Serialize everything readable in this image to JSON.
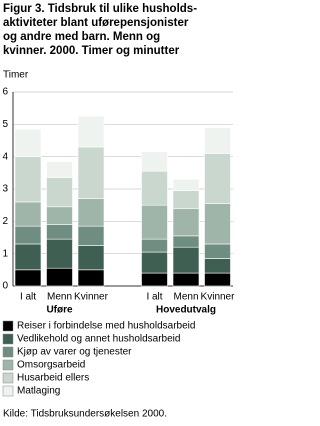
{
  "chart_data": {
    "type": "stacked-bar",
    "title": [
      "Figur 3. Tidsbruk til ulike husholds-",
      "aktiviteter blant uførepensjonister",
      "og andre med barn. Menn og",
      "kvinner. 2000. Timer og minutter"
    ],
    "y_label": "Timer",
    "categories": [
      "I alt",
      "Menn",
      "Kvinner",
      "I alt",
      "Menn",
      "Kvinner"
    ],
    "groups": [
      "Uføre",
      "Hovedutvalg"
    ],
    "series": [
      {
        "name": "Reiser i forbindelse med husholdsarbeid",
        "color": "#000000",
        "values": [
          0.5,
          0.55,
          0.5,
          0.4,
          0.4,
          0.4
        ]
      },
      {
        "name": "Vedlikehold og annet husholdsarbeid",
        "color": "#3f5f52",
        "values": [
          0.8,
          0.9,
          0.75,
          0.65,
          0.8,
          0.45
        ]
      },
      {
        "name": "Kjøp av varer og tjenester",
        "color": "#6f8d80",
        "values": [
          0.55,
          0.45,
          0.6,
          0.4,
          0.35,
          0.45
        ]
      },
      {
        "name": "Omsorgsarbeid",
        "color": "#9fb5a9",
        "values": [
          0.75,
          0.55,
          0.85,
          1.05,
          0.85,
          1.25
        ]
      },
      {
        "name": "Husarbeid ellers",
        "color": "#c9d7ce",
        "values": [
          1.4,
          0.9,
          1.6,
          1.05,
          0.55,
          1.55
        ]
      },
      {
        "name": "Matlaging",
        "color": "#eef3ef",
        "values": [
          0.85,
          0.5,
          0.95,
          0.6,
          0.35,
          0.8
        ]
      }
    ],
    "ylim": [
      0,
      6
    ],
    "yticks": [
      0,
      1,
      2,
      3,
      4,
      5,
      6
    ],
    "grid": true,
    "source": "Kilde: Tidsbruksundersøkelsen 2000."
  }
}
